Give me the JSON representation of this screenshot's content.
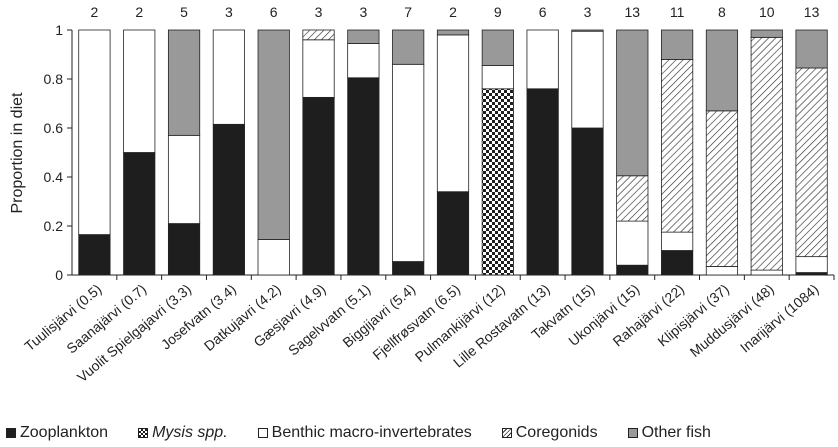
{
  "chart_data": {
    "type": "bar",
    "stacked": true,
    "ylabel": "Proportion in diet",
    "ylim": [
      0,
      1
    ],
    "yticks": [
      "0",
      "0.2",
      "0.4",
      "0.6",
      "0.8",
      "1"
    ],
    "categories": [
      "Tuulisjärvi (0.5)",
      "Saanajärvi (0.7)",
      "Vuolit Spielgajavri (3.3)",
      "Josefvatn (3.4)",
      "Datkujavri (4.2)",
      "Gæsjavri (4.9)",
      "Sagelvvatn (5.1)",
      "Biggijavri (5.4)",
      "Fjellfrøsvatn (6.5)",
      "Pulmankijärvi (12)",
      "Lille Rostavatn (13)",
      "Takvatn (15)",
      "Ukonjärvi (15)",
      "Rahajärvi (22)",
      "Klipisjärvi (37)",
      "Muddusjärvi (48)",
      "Inarijärvi (1084)"
    ],
    "sample_sizes": [
      "2",
      "2",
      "5",
      "3",
      "6",
      "3",
      "3",
      "7",
      "2",
      "9",
      "6",
      "3",
      "13",
      "11",
      "8",
      "10",
      "13"
    ],
    "series": [
      {
        "name": "Zooplankton",
        "color": "#1e1e1e",
        "pattern": "solid",
        "values": [
          0.165,
          0.5,
          0.21,
          0.615,
          0,
          0.725,
          0.805,
          0.055,
          0.34,
          0,
          0.76,
          0.6,
          0.04,
          0.1,
          0,
          0,
          0.01
        ]
      },
      {
        "name": "Mysis spp.",
        "color": "#1e1e1e",
        "pattern": "checker",
        "values": [
          0,
          0,
          0,
          0,
          0,
          0,
          0,
          0,
          0,
          0.76,
          0,
          0,
          0,
          0,
          0,
          0,
          0
        ]
      },
      {
        "name": "Benthic macro-invertebrates",
        "color": "#ffffff",
        "pattern": "solid",
        "values": [
          0.835,
          0.5,
          0.36,
          0.385,
          0.145,
          0.235,
          0.14,
          0.805,
          0.64,
          0.095,
          0.24,
          0.395,
          0.18,
          0.075,
          0.035,
          0.02,
          0.065
        ]
      },
      {
        "name": "Coregonids",
        "color": "#ffffff",
        "pattern": "hatch",
        "values": [
          0,
          0,
          0,
          0,
          0,
          0.04,
          0,
          0,
          0,
          0,
          0,
          0,
          0.185,
          0.705,
          0.635,
          0.95,
          0.77
        ]
      },
      {
        "name": "Other fish",
        "color": "#999999",
        "pattern": "solid",
        "values": [
          0,
          0,
          0.43,
          0,
          0.855,
          0,
          0.055,
          0.14,
          0.02,
          0.145,
          0,
          0.005,
          0.595,
          0.12,
          0.33,
          0.03,
          0.155
        ]
      }
    ],
    "legend": {
      "position": "bottom"
    },
    "grid": false
  },
  "legend_labels": {
    "zooplankton": "Zooplankton",
    "mysis": "Mysis spp.",
    "benthic": "Benthic macro-invertebrates",
    "coregonids": "Coregonids",
    "other": "Other fish"
  }
}
